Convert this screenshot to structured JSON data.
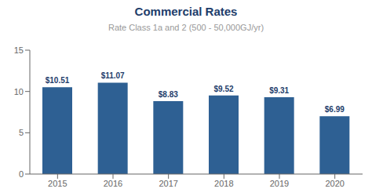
{
  "chart_data": {
    "type": "bar",
    "title": "Commercial Rates",
    "subtitle": "Rate Class 1a and 2 (500 - 50,000GJ/yr)",
    "categories": [
      "2015",
      "2016",
      "2017",
      "2018",
      "2019",
      "2020"
    ],
    "values": [
      10.51,
      11.07,
      8.83,
      9.52,
      9.31,
      6.99
    ],
    "value_labels": [
      "$10.51",
      "$11.07",
      "$8.83",
      "$9.52",
      "$9.31",
      "$6.99"
    ],
    "data_labels": true,
    "color": "#2e6093",
    "ylim": [
      0,
      15
    ],
    "yticks": [
      0,
      5,
      10,
      15
    ],
    "grid": false
  }
}
